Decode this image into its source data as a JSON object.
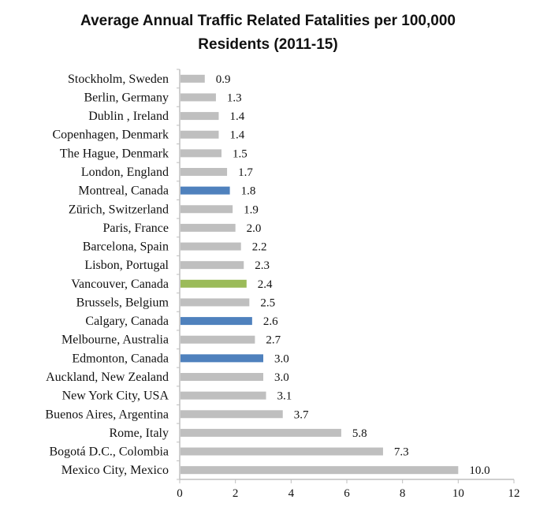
{
  "chart_data": {
    "type": "bar",
    "orientation": "horizontal",
    "title_lines": [
      "Average Annual Traffic Related Fatalities per 100,000",
      "Residents (2011-15)"
    ],
    "xlabel": "",
    "ylabel": "",
    "xlim": [
      0,
      12
    ],
    "x_ticks": [
      "0",
      "2",
      "4",
      "6",
      "8",
      "10",
      "12"
    ],
    "grid": false,
    "legend": "none",
    "categories": [
      "Stockholm, Sweden",
      "Berlin, Germany",
      "Dublin , Ireland",
      "Copenhagen, Denmark",
      "The Hague, Denmark",
      "London, England",
      "Montreal, Canada",
      "Zūrich, Switzerland",
      "Paris, France",
      "Barcelona, Spain",
      "Lisbon, Portugal",
      "Vancouver, Canada",
      "Brussels, Belgium",
      "Calgary, Canada",
      "Melbourne, Australia",
      "Edmonton, Canada",
      "Auckland, New Zealand",
      "New York City, USA",
      "Buenos Aires, Argentina",
      "Rome, Italy",
      "Bogotá D.C., Colombia",
      "Mexico City, Mexico"
    ],
    "values": [
      0.9,
      1.3,
      1.4,
      1.4,
      1.5,
      1.7,
      1.8,
      1.9,
      2.0,
      2.2,
      2.3,
      2.4,
      2.5,
      2.6,
      2.7,
      3.0,
      3.0,
      3.1,
      3.7,
      5.8,
      7.3,
      10.0
    ],
    "value_labels": [
      "0.9",
      "1.3",
      "1.4",
      "1.4",
      "1.5",
      "1.7",
      "1.8",
      "1.9",
      "2.0",
      "2.2",
      "2.3",
      "2.4",
      "2.5",
      "2.6",
      "2.7",
      "3.0",
      "3.0",
      "3.1",
      "3.7",
      "5.8",
      "7.3",
      "10.0"
    ],
    "bar_colors": [
      "#bfbfbf",
      "#bfbfbf",
      "#bfbfbf",
      "#bfbfbf",
      "#bfbfbf",
      "#bfbfbf",
      "#4f81bd",
      "#bfbfbf",
      "#bfbfbf",
      "#bfbfbf",
      "#bfbfbf",
      "#9bbb59",
      "#bfbfbf",
      "#4f81bd",
      "#bfbfbf",
      "#4f81bd",
      "#bfbfbf",
      "#bfbfbf",
      "#bfbfbf",
      "#bfbfbf",
      "#bfbfbf",
      "#bfbfbf"
    ],
    "colors": {
      "default": "#bfbfbf",
      "canada": "#4f81bd",
      "vancouver": "#9bbb59",
      "axis": "#bfbfbf"
    }
  }
}
